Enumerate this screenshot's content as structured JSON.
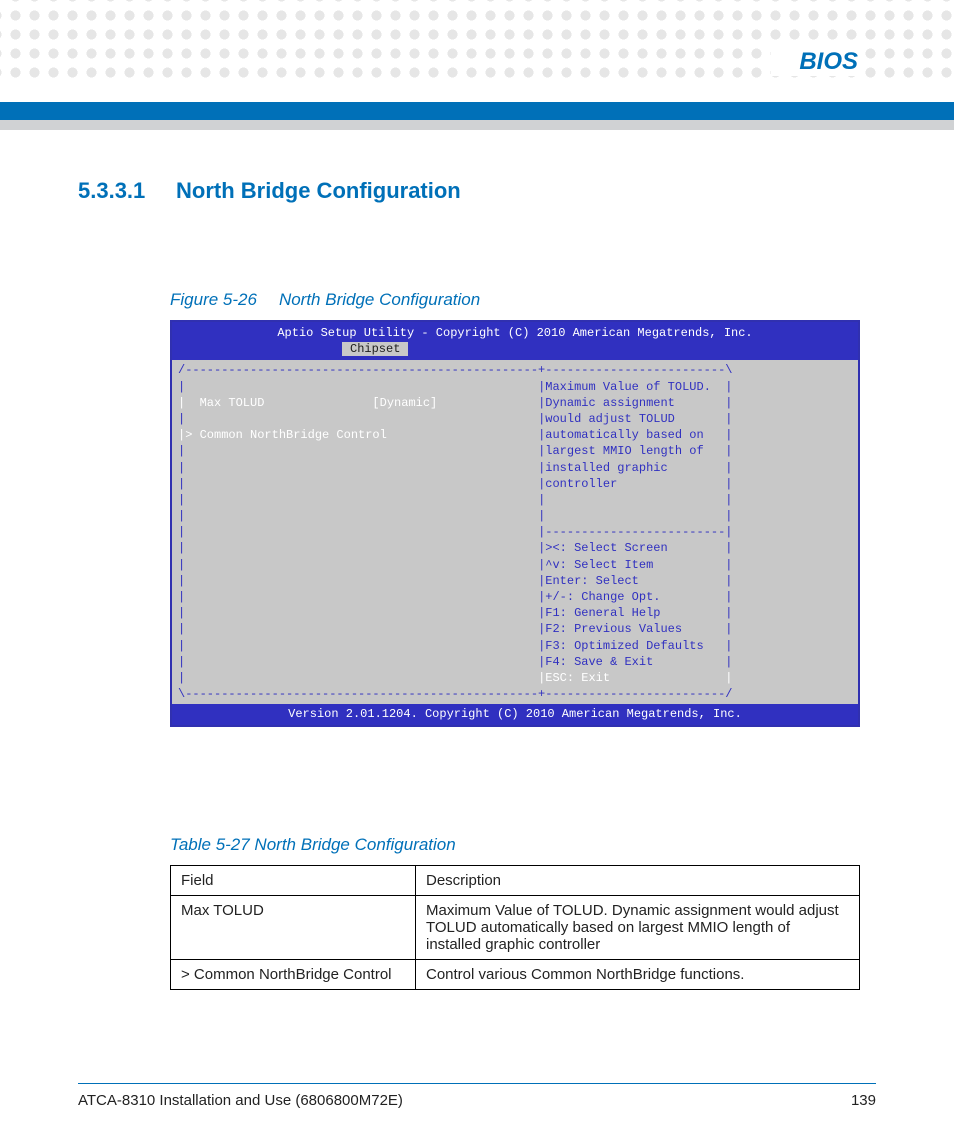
{
  "chapter": "BIOS",
  "section": {
    "number": "5.3.3.1",
    "title": "North Bridge Configuration"
  },
  "figure": {
    "label": "Figure 5-26",
    "title": "North Bridge Configuration"
  },
  "bios": {
    "header": "Aptio Setup Utility - Copyright (C) 2010 American Megatrends, Inc.",
    "tab": "Chipset",
    "top_border": "/-------------------------------------------------+-------------------------\\",
    "rows_left": [
      "|                                                 ",
      "|  Max TOLUD               [Dynamic]              ",
      "|                                                 ",
      "|> Common NorthBridge Control                     ",
      "|                                                 ",
      "|                                                 ",
      "|                                                 ",
      "|                                                 ",
      "|                                                 ",
      "|                                                 ",
      "|                                                 ",
      "|                                                 ",
      "|                                                 ",
      "|                                                 ",
      "|                                                 ",
      "|                                                 ",
      "|                                                 ",
      "|                                                 "
    ],
    "rows_right": [
      "|Maximum Value of TOLUD.  |",
      "|Dynamic assignment       |",
      "|would adjust TOLUD       |",
      "|automatically based on   |",
      "|largest MMIO length of   |",
      "|installed graphic        |",
      "|controller               |",
      "|                         |",
      "|                         |",
      "|-------------------------|",
      "|><: Select Screen        |",
      "|^v: Select Item          |",
      "|Enter: Select            |",
      "|+/-: Change Opt.         |",
      "|F1: General Help         |",
      "|F2: Previous Values      |",
      "|F3: Optimized Defaults   |",
      "|F4: Save & Exit          |"
    ],
    "esc_left": "|                                                 ",
    "esc_right": "|ESC: Exit                |",
    "bottom_border": "\\-------------------------------------------------+-------------------------/",
    "left_white_idx": [
      1,
      3
    ],
    "footer": "Version 2.01.1204. Copyright (C) 2010 American Megatrends, Inc."
  },
  "table": {
    "label": "Table 5-27 North Bridge Configuration",
    "headers": [
      "Field",
      "Description"
    ],
    "rows": [
      [
        "Max TOLUD",
        "Maximum Value of TOLUD. Dynamic assignment would adjust TOLUD automatically based on largest MMIO length of installed graphic controller"
      ],
      [
        "> Common NorthBridge Control",
        "Control various Common NorthBridge functions."
      ]
    ]
  },
  "footer": {
    "doc": "ATCA-8310 Installation and Use (6806800M72E)",
    "page": "139"
  },
  "colors": {
    "accent": "#0070b8",
    "bios_frame": "#3030c0",
    "bios_bg": "#c8c8c8",
    "dot": "#e6e6e6"
  }
}
